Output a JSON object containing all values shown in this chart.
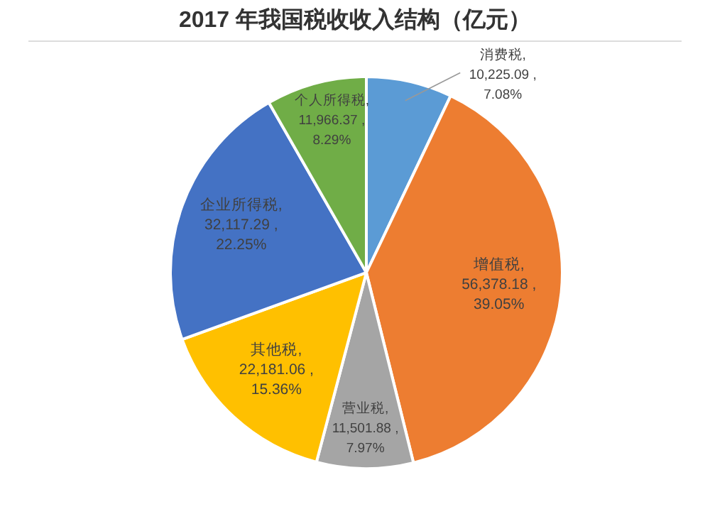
{
  "chart_data": {
    "type": "pie",
    "title": "2017 年我国税收收入结构（亿元）",
    "categories": [
      "消费税",
      "增值税",
      "营业税",
      "其他税",
      "企业所得税",
      "个人所得税"
    ],
    "values": [
      10225.09,
      56378.18,
      11501.88,
      22181.06,
      32117.29,
      11966.37
    ],
    "colors": [
      "#5b9bd5",
      "#ed7d31",
      "#a5a5a5",
      "#ffc000",
      "#4472c4",
      "#70ad47"
    ],
    "value_labels": [
      ",\n10,225.09 ,\n7.08%",
      ",\n56,378.18 ,\n39.05%",
      ",\n11,501.88 ,\n7.97%",
      ",\n22,181.06 ,\n15.36%",
      ",\n32,117.29 ,\n22.25%",
      ",\n11,966.37 ,\n8.29%"
    ],
    "legend": false
  }
}
